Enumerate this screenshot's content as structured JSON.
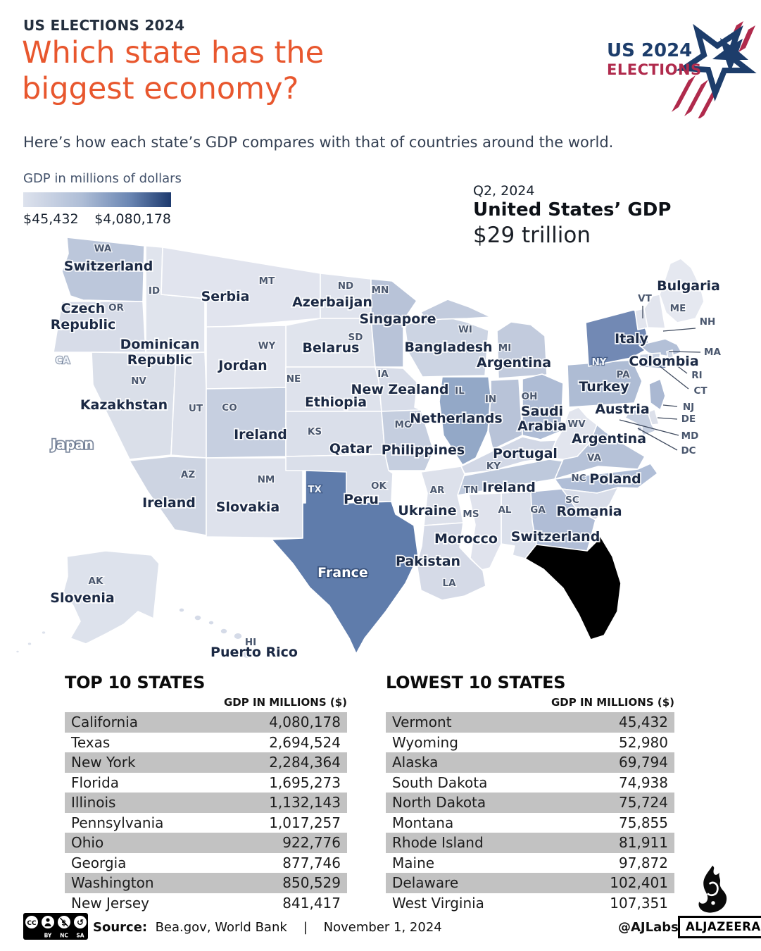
{
  "header": {
    "kicker": "US ELECTIONS 2024",
    "title_line1": "Which state has the",
    "title_line2": "biggest economy?",
    "subtitle": "Here’s how each state’s GDP compares with that of countries around the world.",
    "accent_color": "#e8572e",
    "navy_color": "#242f3e"
  },
  "logo": {
    "line1": "US 2024",
    "line2": "ELECTIONS",
    "navy": "#1d3d6b",
    "crimson": "#b02a4c"
  },
  "legend": {
    "label": "GDP in millions of dollars",
    "min": "$45,432",
    "max": "$4,080,178",
    "gradient_start": "#dde2ed",
    "gradient_end": "#1d3a6e"
  },
  "us_gdp": {
    "period": "Q2, 2024",
    "title": "United States’ GDP",
    "value": "$29 trillion"
  },
  "map": {
    "states": [
      {
        "abbr": "WA",
        "country": "Switzerland"
      },
      {
        "abbr": "OR",
        "country": "Czech\nRepublic"
      },
      {
        "abbr": "ID",
        "country": "Dominican\nRepublic"
      },
      {
        "abbr": "MT",
        "country": "Serbia"
      },
      {
        "abbr": "ND",
        "country": "Azerbaijan"
      },
      {
        "abbr": "MN",
        "country": "Singapore"
      },
      {
        "abbr": "WI",
        "country": "Bangladesh"
      },
      {
        "abbr": "MI",
        "country": "Argentina"
      },
      {
        "abbr": "WY",
        "country": "Jordan"
      },
      {
        "abbr": "SD",
        "country": "Belarus"
      },
      {
        "abbr": "NE",
        "country": "Ethiopia"
      },
      {
        "abbr": "IA",
        "country": "New Zealand"
      },
      {
        "abbr": "NV",
        "country": "Kazakhstan"
      },
      {
        "abbr": "UT",
        "country": null
      },
      {
        "abbr": "CO",
        "country": "Ireland"
      },
      {
        "abbr": "KS",
        "country": "Qatar"
      },
      {
        "abbr": "MO",
        "country": "Philippines"
      },
      {
        "abbr": "IL",
        "country": "Netherlands"
      },
      {
        "abbr": "IN",
        "country": null
      },
      {
        "abbr": "OH",
        "country": "Saudi\nArabia"
      },
      {
        "abbr": "KY",
        "country": "Portugal"
      },
      {
        "abbr": "TN",
        "country": "Ireland"
      },
      {
        "abbr": "WV",
        "country": null
      },
      {
        "abbr": "VA",
        "country": "Argentina"
      },
      {
        "abbr": "NC",
        "country": "Poland"
      },
      {
        "abbr": "SC",
        "country": "Romania"
      },
      {
        "abbr": "GA",
        "country": "Switzerland"
      },
      {
        "abbr": "AL",
        "country": null
      },
      {
        "abbr": "MS",
        "country": "Morocco"
      },
      {
        "abbr": "AR",
        "country": "Ukraine"
      },
      {
        "abbr": "LA",
        "country": "Pakistan"
      },
      {
        "abbr": "OK",
        "country": "Peru"
      },
      {
        "abbr": "TX",
        "country": "France"
      },
      {
        "abbr": "NM",
        "country": "Slovakia"
      },
      {
        "abbr": "AZ",
        "country": "Ireland"
      },
      {
        "abbr": "CA",
        "country": "Japan"
      },
      {
        "abbr": "AK",
        "country": "Slovenia"
      },
      {
        "abbr": "HI",
        "country": "Puerto Rico"
      },
      {
        "abbr": "NY",
        "country": "Italy"
      },
      {
        "abbr": "PA",
        "country": "Turkey"
      },
      {
        "abbr": "ME",
        "country": "Bulgaria"
      },
      {
        "abbr": "VT",
        "country": null
      },
      {
        "abbr": "NH",
        "country": null
      },
      {
        "abbr": "MA",
        "country": null
      },
      {
        "abbr": "RI",
        "country": null
      },
      {
        "abbr": "CT",
        "country": null
      },
      {
        "abbr": "NJ",
        "country": null
      },
      {
        "abbr": "DE",
        "country": null
      },
      {
        "abbr": "MD",
        "country": null
      },
      {
        "abbr": "DC",
        "country": null
      }
    ],
    "floating_labels": [
      {
        "text": "Colombia"
      },
      {
        "text": "Austria"
      }
    ]
  },
  "tables": {
    "top": {
      "title": "TOP 10 STATES",
      "header": "GDP IN MILLIONS ($)"
    },
    "lowest": {
      "title": "LOWEST 10 STATES",
      "header": "GDP IN MILLIONS ($)"
    }
  },
  "footer": {
    "source_label": "Source:",
    "source_value": "Bea.gov, World Bank",
    "divider": "|",
    "date": "November 1, 2024",
    "handle": "@AJLabs",
    "brand": "ALJAZEERA",
    "cc_labels": [
      "BY",
      "NC",
      "SA"
    ]
  },
  "chart_data": {
    "type": "choropleth",
    "title": "Which state has the biggest economy?",
    "unit": "GDP in millions of dollars",
    "color_scale": {
      "min": 45432,
      "max": 4080178,
      "from": "#dde2ed",
      "to": "#1d3a6e"
    },
    "us_total": {
      "period": "Q2, 2024",
      "value": "$29 trillion"
    },
    "state_country_equivalents": {
      "WA": "Switzerland",
      "OR": "Czech Republic",
      "ID": "Dominican Republic",
      "MT": "Serbia",
      "ND": "Azerbaijan",
      "MN": "Singapore",
      "WI": "Bangladesh",
      "MI": "Argentina",
      "WY": "Jordan",
      "SD": "Belarus",
      "NE": "Ethiopia",
      "IA": "New Zealand",
      "NV": "Kazakhstan",
      "CO": "Ireland",
      "KS": "Qatar",
      "MO": "Philippines",
      "IL": "Netherlands",
      "OH": "Saudi Arabia",
      "KY": "Portugal",
      "TN": "Ireland",
      "VA": "Argentina",
      "NC": "Poland",
      "SC": "Romania",
      "GA": "Switzerland",
      "MS": "Morocco",
      "AR": "Ukraine",
      "LA": "Pakistan",
      "OK": "Peru",
      "TX": "France",
      "NM": "Slovakia",
      "AZ": "Ireland",
      "CA": "Japan",
      "AK": "Slovenia",
      "HI": "Puerto Rico",
      "NY": "Italy",
      "PA": "Turkey",
      "ME": "Bulgaria"
    },
    "top_10_states_gdp_millions": [
      [
        "California",
        4080178
      ],
      [
        "Texas",
        2694524
      ],
      [
        "New York",
        2284364
      ],
      [
        "Florida",
        1695273
      ],
      [
        "Illinois",
        1132143
      ],
      [
        "Pennsylvania",
        1017257
      ],
      [
        "Ohio",
        922776
      ],
      [
        "Georgia",
        877746
      ],
      [
        "Washington",
        850529
      ],
      [
        "New Jersey",
        841417
      ]
    ],
    "lowest_10_states_gdp_millions": [
      [
        "Vermont",
        45432
      ],
      [
        "Wyoming",
        52980
      ],
      [
        "Alaska",
        69794
      ],
      [
        "South Dakota",
        74938
      ],
      [
        "North Dakota",
        75724
      ],
      [
        "Montana",
        75855
      ],
      [
        "Rhode Island",
        81911
      ],
      [
        "Maine",
        97872
      ],
      [
        "Delaware",
        102401
      ],
      [
        "West Virginia",
        107351
      ]
    ]
  }
}
